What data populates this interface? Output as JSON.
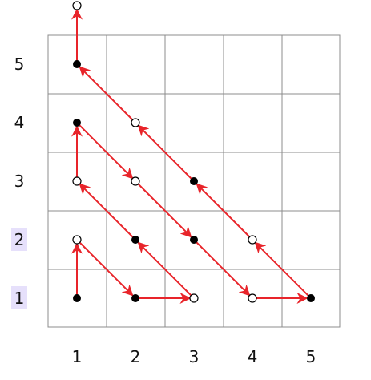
{
  "diagram": {
    "x_labels": [
      "1",
      "2",
      "3",
      "4",
      "5"
    ],
    "y_labels": [
      "1",
      "2",
      "3",
      "4",
      "5"
    ],
    "highlighted_y_labels": [
      "1",
      "2"
    ],
    "colors": {
      "grid": "#8c8c8c",
      "path": "#e8242a",
      "filled_node": "#000000",
      "open_node_stroke": "#000000",
      "label_highlight": "#e6e0fb"
    },
    "filled_nodes": [
      {
        "x": 1,
        "y": 1
      },
      {
        "x": 2,
        "y": 1
      },
      {
        "x": 5,
        "y": 1
      },
      {
        "x": 2,
        "y": 2
      },
      {
        "x": 3,
        "y": 2
      },
      {
        "x": 3,
        "y": 3
      },
      {
        "x": 1,
        "y": 4
      },
      {
        "x": 1,
        "y": 5
      }
    ],
    "open_nodes": [
      {
        "x": 3,
        "y": 1
      },
      {
        "x": 4,
        "y": 1
      },
      {
        "x": 1,
        "y": 2
      },
      {
        "x": 4,
        "y": 2
      },
      {
        "x": 1,
        "y": 3
      },
      {
        "x": 2,
        "y": 3
      },
      {
        "x": 2,
        "y": 4
      },
      {
        "x": 1,
        "y": 6
      }
    ],
    "path": [
      {
        "x": 1,
        "y": 1
      },
      {
        "x": 1,
        "y": 2
      },
      {
        "x": 2,
        "y": 1
      },
      {
        "x": 3,
        "y": 1
      },
      {
        "x": 2,
        "y": 2
      },
      {
        "x": 1,
        "y": 3
      },
      {
        "x": 1,
        "y": 4
      },
      {
        "x": 2,
        "y": 3
      },
      {
        "x": 3,
        "y": 2
      },
      {
        "x": 4,
        "y": 1
      },
      {
        "x": 5,
        "y": 1
      },
      {
        "x": 4,
        "y": 2
      },
      {
        "x": 3,
        "y": 3
      },
      {
        "x": 2,
        "y": 4
      },
      {
        "x": 1,
        "y": 5
      },
      {
        "x": 1,
        "y": 6
      }
    ]
  }
}
